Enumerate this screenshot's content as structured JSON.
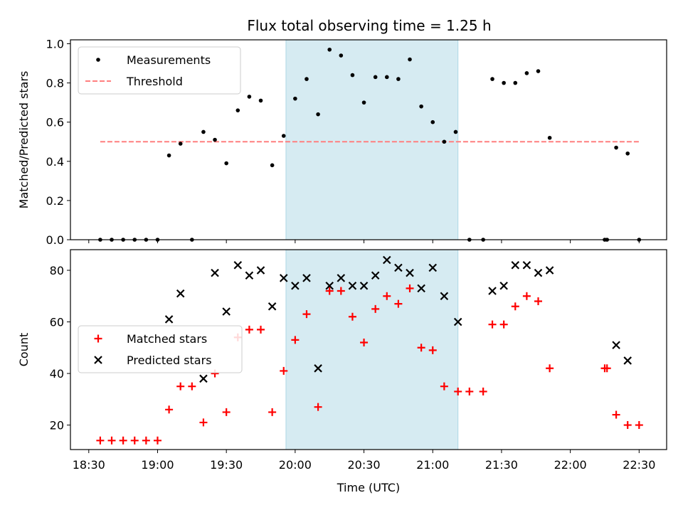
{
  "title": "Flux total observing time = 1.25 h",
  "shade_color": "#add8e6",
  "chart_data": [
    {
      "type": "scatter",
      "ylabel": "Matched/Predicted stars",
      "ylim": [
        0,
        1.02
      ],
      "yticks": [
        "0.0",
        "0.2",
        "0.4",
        "0.6",
        "0.8",
        "1.0"
      ],
      "xlim": [
        "18:22",
        "22:42"
      ],
      "shaded_range": [
        "19:56",
        "21:11"
      ],
      "legend": {
        "placement": "upper-left",
        "entries": [
          {
            "name": "Measurements",
            "marker": "dot",
            "color": "#000000"
          },
          {
            "name": "Threshold",
            "marker": "dashed-line",
            "color": "#ff7f7f"
          }
        ]
      },
      "threshold": {
        "y": 0.5,
        "x_range": [
          "18:35",
          "22:30"
        ]
      },
      "series": [
        {
          "name": "Measurements",
          "color": "#000000",
          "points": [
            [
              "18:35",
              0.0
            ],
            [
              "18:40",
              0.0
            ],
            [
              "18:45",
              0.0
            ],
            [
              "18:50",
              0.0
            ],
            [
              "18:55",
              0.0
            ],
            [
              "19:00",
              0.0
            ],
            [
              "19:05",
              0.43
            ],
            [
              "19:10",
              0.49
            ],
            [
              "19:15",
              0.0
            ],
            [
              "19:20",
              0.55
            ],
            [
              "19:25",
              0.51
            ],
            [
              "19:30",
              0.39
            ],
            [
              "19:35",
              0.66
            ],
            [
              "19:40",
              0.73
            ],
            [
              "19:45",
              0.71
            ],
            [
              "19:50",
              0.38
            ],
            [
              "19:55",
              0.53
            ],
            [
              "20:00",
              0.72
            ],
            [
              "20:05",
              0.82
            ],
            [
              "20:10",
              0.64
            ],
            [
              "20:15",
              0.97
            ],
            [
              "20:20",
              0.94
            ],
            [
              "20:25",
              0.84
            ],
            [
              "20:30",
              0.7
            ],
            [
              "20:35",
              0.83
            ],
            [
              "20:40",
              0.83
            ],
            [
              "20:45",
              0.82
            ],
            [
              "20:50",
              0.92
            ],
            [
              "20:55",
              0.68
            ],
            [
              "21:00",
              0.6
            ],
            [
              "21:05",
              0.5
            ],
            [
              "21:10",
              0.55
            ],
            [
              "21:16",
              0.0
            ],
            [
              "21:22",
              0.0
            ],
            [
              "21:26",
              0.82
            ],
            [
              "21:31",
              0.8
            ],
            [
              "21:36",
              0.8
            ],
            [
              "21:41",
              0.85
            ],
            [
              "21:46",
              0.86
            ],
            [
              "21:51",
              0.52
            ],
            [
              "22:15",
              0.0
            ],
            [
              "22:16",
              0.0
            ],
            [
              "22:20",
              0.47
            ],
            [
              "22:25",
              0.44
            ],
            [
              "22:30",
              0.0
            ]
          ]
        }
      ]
    },
    {
      "type": "scatter",
      "xlabel": "Time (UTC)",
      "ylabel": "Count",
      "ylim": [
        10.5,
        88
      ],
      "yticks": [
        "20",
        "40",
        "60",
        "80"
      ],
      "xticks": [
        "18:30",
        "19:00",
        "19:30",
        "20:00",
        "20:30",
        "21:00",
        "21:30",
        "22:00",
        "22:30"
      ],
      "xlim": [
        "18:22",
        "22:42"
      ],
      "shaded_range": [
        "19:56",
        "21:11"
      ],
      "legend": {
        "placement": "center-left",
        "entries": [
          {
            "name": "Matched stars",
            "marker": "plus",
            "color": "#ff0000"
          },
          {
            "name": "Predicted stars",
            "marker": "x",
            "color": "#000000"
          }
        ]
      },
      "series": [
        {
          "name": "Matched stars",
          "marker": "plus",
          "color": "#ff0000",
          "points": [
            [
              "18:35",
              14
            ],
            [
              "18:40",
              14
            ],
            [
              "18:45",
              14
            ],
            [
              "18:50",
              14
            ],
            [
              "18:55",
              14
            ],
            [
              "19:00",
              14
            ],
            [
              "19:05",
              26
            ],
            [
              "19:10",
              35
            ],
            [
              "19:15",
              35
            ],
            [
              "19:20",
              21
            ],
            [
              "19:25",
              40
            ],
            [
              "19:30",
              25
            ],
            [
              "19:35",
              54
            ],
            [
              "19:40",
              57
            ],
            [
              "19:45",
              57
            ],
            [
              "19:50",
              25
            ],
            [
              "19:55",
              41
            ],
            [
              "20:00",
              53
            ],
            [
              "20:05",
              63
            ],
            [
              "20:10",
              27
            ],
            [
              "20:15",
              72
            ],
            [
              "20:20",
              72
            ],
            [
              "20:25",
              62
            ],
            [
              "20:30",
              52
            ],
            [
              "20:35",
              65
            ],
            [
              "20:40",
              70
            ],
            [
              "20:45",
              67
            ],
            [
              "20:50",
              73
            ],
            [
              "20:55",
              50
            ],
            [
              "21:00",
              49
            ],
            [
              "21:05",
              35
            ],
            [
              "21:11",
              33
            ],
            [
              "21:16",
              33
            ],
            [
              "21:22",
              33
            ],
            [
              "21:26",
              59
            ],
            [
              "21:31",
              59
            ],
            [
              "21:36",
              66
            ],
            [
              "21:41",
              70
            ],
            [
              "21:46",
              68
            ],
            [
              "21:51",
              42
            ],
            [
              "22:15",
              42
            ],
            [
              "22:16",
              42
            ],
            [
              "22:20",
              24
            ],
            [
              "22:25",
              20
            ],
            [
              "22:30",
              20
            ]
          ]
        },
        {
          "name": "Predicted stars",
          "marker": "x",
          "color": "#000000",
          "points": [
            [
              "19:05",
              61
            ],
            [
              "19:10",
              71
            ],
            [
              "19:20",
              38
            ],
            [
              "19:25",
              79
            ],
            [
              "19:30",
              64
            ],
            [
              "19:35",
              82
            ],
            [
              "19:40",
              78
            ],
            [
              "19:45",
              80
            ],
            [
              "19:50",
              66
            ],
            [
              "19:55",
              77
            ],
            [
              "20:00",
              74
            ],
            [
              "20:05",
              77
            ],
            [
              "20:10",
              42
            ],
            [
              "20:15",
              74
            ],
            [
              "20:20",
              77
            ],
            [
              "20:25",
              74
            ],
            [
              "20:30",
              74
            ],
            [
              "20:35",
              78
            ],
            [
              "20:40",
              84
            ],
            [
              "20:45",
              81
            ],
            [
              "20:50",
              79
            ],
            [
              "20:55",
              73
            ],
            [
              "21:00",
              81
            ],
            [
              "21:05",
              70
            ],
            [
              "21:11",
              60
            ],
            [
              "21:26",
              72
            ],
            [
              "21:31",
              74
            ],
            [
              "21:36",
              82
            ],
            [
              "21:41",
              82
            ],
            [
              "21:46",
              79
            ],
            [
              "21:51",
              80
            ],
            [
              "22:20",
              51
            ],
            [
              "22:25",
              45
            ]
          ]
        }
      ]
    }
  ]
}
